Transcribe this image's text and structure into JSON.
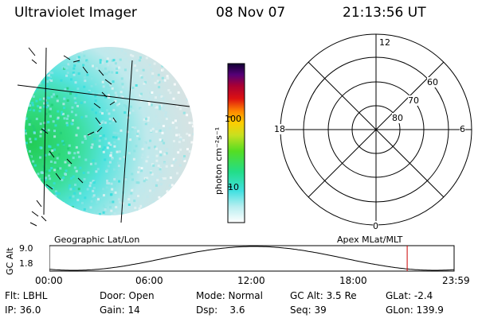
{
  "header": {
    "instrument": "Ultraviolet Imager",
    "date": "08 Nov 07",
    "time": "21:13:56 UT"
  },
  "colorbar": {
    "label": "photon cm⁻²s⁻¹",
    "ticks": [
      "100",
      "10"
    ]
  },
  "polar": {
    "mlt_labels": {
      "top": "12",
      "left": "18",
      "right": "6",
      "bottom": "0"
    },
    "lat_labels": [
      "60",
      "70",
      "80"
    ]
  },
  "panel_labels": {
    "left": "Geographic Lat/Lon",
    "right": "Apex MLat/MLT"
  },
  "orbit": {
    "ylabel": "GC Alt",
    "ytick_top": "9.0",
    "ytick_bottom": "1.8",
    "xticks": [
      "00:00",
      "06:00",
      "12:00",
      "18:00",
      "23:59"
    ],
    "marker_color": "#cc0000"
  },
  "footer": {
    "row1": [
      "Flt: LBHL",
      "Door: Open",
      "Mode: Normal",
      "GC Alt: 3.5 Re",
      "GLat:  -2.4"
    ],
    "row2": [
      "IP: 36.0",
      "Gain: 14",
      "Dsp:    3.6",
      "Seq: 39",
      "GLon: 139.9"
    ]
  },
  "colors": {
    "aurora_green": "#22cc55",
    "aurora_cyan": "#33dddd",
    "aurora_pale": "#bfe9ec",
    "bg_gray": "#d4dcdc"
  }
}
